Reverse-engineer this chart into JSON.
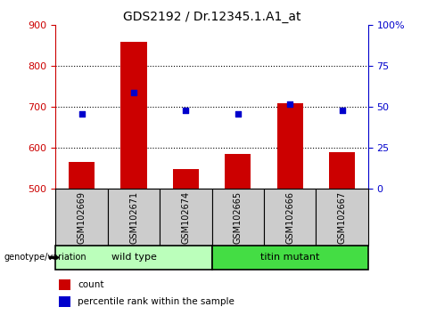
{
  "title": "GDS2192 / Dr.12345.1.A1_at",
  "samples": [
    "GSM102669",
    "GSM102671",
    "GSM102674",
    "GSM102665",
    "GSM102666",
    "GSM102667"
  ],
  "counts": [
    565,
    860,
    548,
    585,
    710,
    590
  ],
  "percentiles": [
    46,
    59,
    48,
    46,
    52,
    48
  ],
  "ylim_left": [
    500,
    900
  ],
  "ylim_right": [
    0,
    100
  ],
  "yticks_left": [
    500,
    600,
    700,
    800,
    900
  ],
  "yticks_right": [
    0,
    25,
    50,
    75,
    100
  ],
  "ytick_labels_right": [
    "0",
    "25",
    "50",
    "75",
    "100%"
  ],
  "bar_color": "#cc0000",
  "marker_color": "#0000cc",
  "grid_color": "#000000",
  "wild_type_label": "wild type",
  "titin_mutant_label": "titin mutant",
  "wild_type_color": "#bbffbb",
  "titin_mutant_color": "#44dd44",
  "group_bg_color": "#cccccc",
  "legend_count_label": "count",
  "legend_percentile_label": "percentile rank within the sample",
  "genotype_label": "genotype/variation",
  "title_fontsize": 10,
  "tick_fontsize": 8,
  "label_fontsize": 7,
  "bar_width": 0.5
}
